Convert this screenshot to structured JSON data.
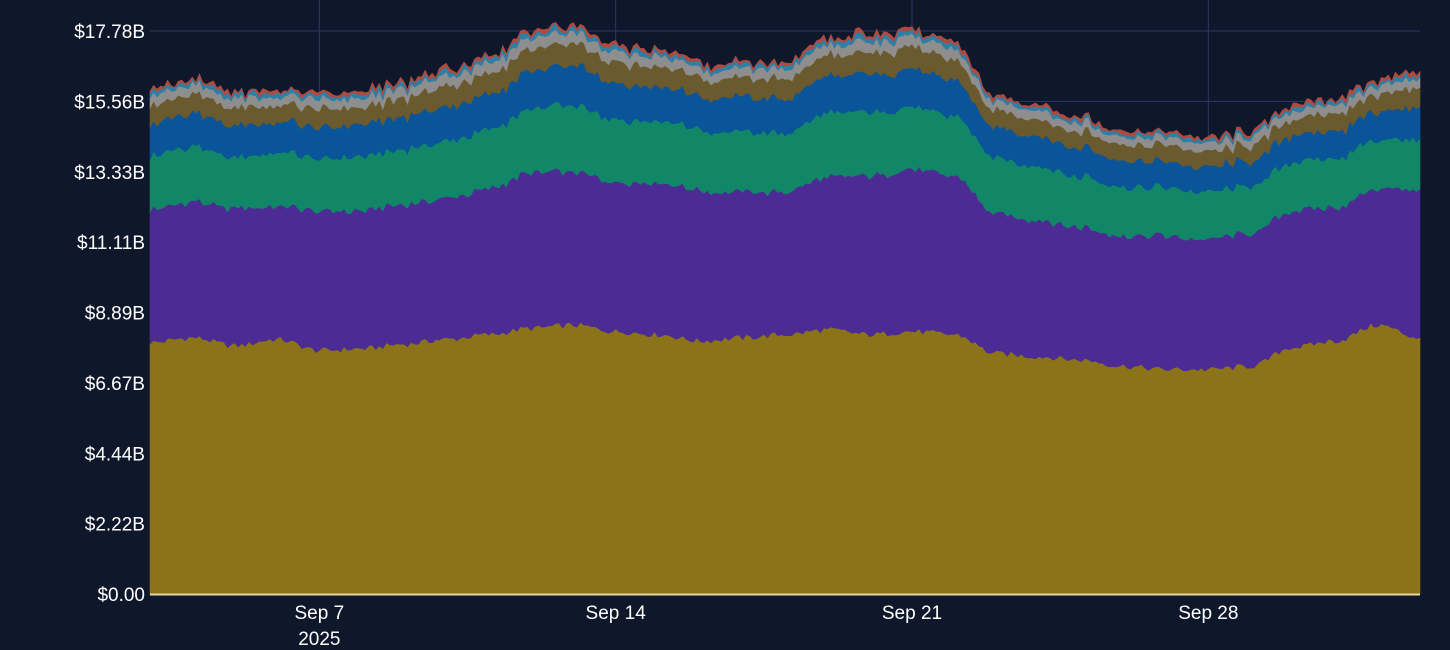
{
  "chart_data": {
    "type": "area",
    "stacked": true,
    "x_ticks": [
      "Sep 7",
      "Sep 14",
      "Sep 21",
      "Sep 28"
    ],
    "x_tick_sublabel": "2025",
    "y_ticks": [
      "$0.00",
      "$2.22B",
      "$4.44B",
      "$6.67B",
      "$8.89B",
      "$11.11B",
      "$13.33B",
      "$15.56B",
      "$17.78B"
    ],
    "ylim": [
      0,
      17.78
    ],
    "xlim": [
      "2025-09-03",
      "2025-10-03"
    ],
    "grid": true,
    "legend": "none",
    "colors": [
      "#8a7318",
      "#4c2c94",
      "#128767",
      "#0a5499",
      "#6b5a2e",
      "#8e8e8e",
      "#2e7fa6",
      "#b04a3e"
    ],
    "x": [
      "2025-09-03",
      "2025-09-04",
      "2025-09-05",
      "2025-09-06",
      "2025-09-07",
      "2025-09-08",
      "2025-09-09",
      "2025-09-10",
      "2025-09-11",
      "2025-09-12",
      "2025-09-13",
      "2025-09-14",
      "2025-09-15",
      "2025-09-16",
      "2025-09-17",
      "2025-09-18",
      "2025-09-19",
      "2025-09-20",
      "2025-09-21",
      "2025-09-22",
      "2025-09-23",
      "2025-09-24",
      "2025-09-25",
      "2025-09-26",
      "2025-09-27",
      "2025-09-28",
      "2025-09-29",
      "2025-09-30",
      "2025-10-01",
      "2025-10-02",
      "2025-10-03"
    ],
    "series": [
      {
        "values": [
          7.95,
          8.1,
          7.85,
          8.05,
          7.7,
          7.75,
          7.9,
          8.05,
          8.2,
          8.4,
          8.5,
          8.3,
          8.2,
          8.0,
          8.1,
          8.2,
          8.35,
          8.2,
          8.3,
          8.2,
          7.6,
          7.5,
          7.4,
          7.2,
          7.1,
          7.1,
          7.2,
          7.8,
          8.0,
          8.5,
          8.1
        ]
      },
      {
        "values": [
          4.2,
          4.3,
          4.35,
          4.2,
          4.4,
          4.35,
          4.4,
          4.45,
          4.6,
          4.9,
          4.85,
          4.7,
          4.8,
          4.75,
          4.6,
          4.5,
          4.8,
          5.0,
          5.1,
          5.0,
          4.4,
          4.3,
          4.2,
          4.1,
          4.2,
          4.1,
          4.2,
          4.3,
          4.2,
          4.3,
          4.7
        ]
      },
      {
        "values": [
          1.7,
          1.75,
          1.6,
          1.7,
          1.65,
          1.7,
          1.75,
          1.8,
          1.85,
          2.0,
          2.1,
          2.0,
          1.95,
          1.9,
          1.9,
          1.85,
          2.0,
          2.0,
          1.95,
          1.9,
          1.75,
          1.7,
          1.6,
          1.55,
          1.5,
          1.5,
          1.5,
          1.55,
          1.55,
          1.55,
          1.6
        ]
      },
      {
        "values": [
          1.0,
          1.05,
          1.0,
          0.95,
          1.0,
          1.0,
          1.05,
          1.1,
          1.1,
          1.2,
          1.25,
          1.15,
          1.1,
          1.05,
          1.1,
          1.1,
          1.15,
          1.2,
          1.2,
          1.15,
          0.95,
          0.95,
          0.9,
          0.85,
          0.8,
          0.8,
          0.8,
          0.85,
          0.85,
          0.9,
          1.0
        ]
      },
      {
        "values": [
          0.6,
          0.6,
          0.55,
          0.55,
          0.6,
          0.55,
          0.6,
          0.65,
          0.65,
          0.7,
          0.7,
          0.65,
          0.65,
          0.6,
          0.6,
          0.65,
          0.65,
          0.7,
          0.7,
          0.65,
          0.55,
          0.55,
          0.5,
          0.5,
          0.5,
          0.5,
          0.5,
          0.5,
          0.55,
          0.55,
          0.6
        ]
      },
      {
        "values": [
          0.3,
          0.3,
          0.3,
          0.28,
          0.3,
          0.3,
          0.3,
          0.32,
          0.32,
          0.34,
          0.34,
          0.32,
          0.32,
          0.3,
          0.3,
          0.32,
          0.32,
          0.34,
          0.34,
          0.32,
          0.28,
          0.28,
          0.26,
          0.26,
          0.25,
          0.25,
          0.26,
          0.26,
          0.27,
          0.28,
          0.3
        ]
      },
      {
        "values": [
          0.12,
          0.12,
          0.12,
          0.11,
          0.12,
          0.12,
          0.12,
          0.13,
          0.13,
          0.14,
          0.14,
          0.13,
          0.13,
          0.12,
          0.12,
          0.13,
          0.13,
          0.14,
          0.14,
          0.13,
          0.11,
          0.11,
          0.1,
          0.1,
          0.1,
          0.1,
          0.1,
          0.1,
          0.11,
          0.11,
          0.12
        ]
      },
      {
        "values": [
          0.08,
          0.08,
          0.08,
          0.07,
          0.08,
          0.08,
          0.08,
          0.08,
          0.08,
          0.09,
          0.09,
          0.08,
          0.08,
          0.08,
          0.08,
          0.08,
          0.08,
          0.09,
          0.09,
          0.08,
          0.07,
          0.07,
          0.07,
          0.07,
          0.06,
          0.06,
          0.07,
          0.07,
          0.07,
          0.07,
          0.08
        ]
      }
    ]
  }
}
